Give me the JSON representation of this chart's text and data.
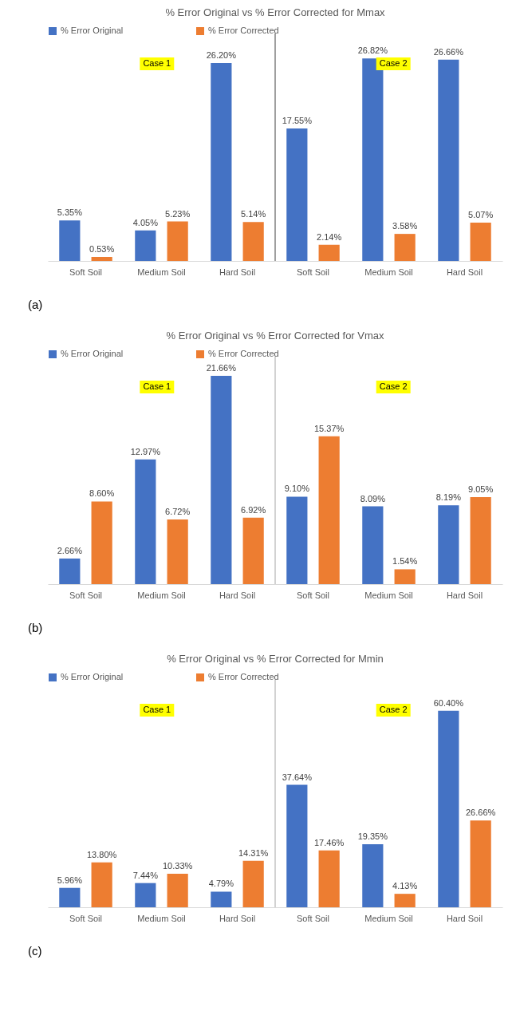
{
  "chart_data": [
    {
      "type": "bar",
      "title": "% Error Original vs % Error Corrected for Mmax",
      "categories": [
        "Soft Soil",
        "Medium Soil",
        "Hard Soil",
        "Soft Soil",
        "Medium Soil",
        "Hard Soil"
      ],
      "tick_labels": "x",
      "legend": "top",
      "annotations": [
        "Case 1",
        "Case 2",
        "(a)"
      ],
      "series": [
        {
          "name": "% Error Original",
          "color": "#4472c4",
          "values": [
            5.35,
            4.05,
            26.2,
            17.55,
            26.82,
            26.66
          ],
          "value_labels": [
            "5.35%",
            "4.05%",
            "26.20%",
            "17.55%",
            "26.82%",
            "26.66%"
          ]
        },
        {
          "name": "% Error Corrected",
          "color": "#ed7d31",
          "values": [
            0.53,
            5.23,
            5.14,
            2.14,
            3.58,
            5.07
          ],
          "value_labels": [
            "0.53%",
            "5.23%",
            "5.14%",
            "2.14%",
            "3.58%",
            "5.07%"
          ]
        }
      ]
    },
    {
      "type": "bar",
      "title": "% Error Original vs % Error Corrected for Vmax",
      "categories": [
        "Soft Soil",
        "Medium Soil",
        "Hard Soil",
        "Soft Soil",
        "Medium Soil",
        "Hard Soil"
      ],
      "tick_labels": "x",
      "legend": "top",
      "annotations": [
        "Case 1",
        "Case 2",
        "(b)"
      ],
      "series": [
        {
          "name": "% Error Original",
          "color": "#4472c4",
          "values": [
            2.66,
            12.97,
            21.66,
            9.1,
            8.09,
            8.19
          ],
          "value_labels": [
            "2.66%",
            "12.97%",
            "21.66%",
            "9.10%",
            "8.09%",
            "8.19%"
          ]
        },
        {
          "name": "% Error Corrected",
          "color": "#ed7d31",
          "values": [
            8.6,
            6.72,
            6.92,
            15.37,
            1.54,
            9.05
          ],
          "value_labels": [
            "8.60%",
            "6.72%",
            "6.92%",
            "15.37%",
            "1.54%",
            "9.05%"
          ]
        }
      ]
    },
    {
      "type": "bar",
      "title": "% Error Original vs % Error Corrected for Mmin",
      "categories": [
        "Soft Soil",
        "Medium Soil",
        "Hard Soil",
        "Soft Soil",
        "Medium Soil",
        "Hard Soil"
      ],
      "tick_labels": "x",
      "legend": "top",
      "annotations": [
        "Case 1",
        "Case 2",
        "(c)"
      ],
      "series": [
        {
          "name": "% Error Original",
          "color": "#4472c4",
          "values": [
            5.96,
            7.44,
            4.79,
            37.64,
            19.35,
            60.4
          ],
          "value_labels": [
            "5.96%",
            "7.44%",
            "4.79%",
            "37.64%",
            "19.35%",
            "60.40%"
          ]
        },
        {
          "name": "% Error Corrected",
          "color": "#ed7d31",
          "values": [
            13.8,
            10.33,
            14.31,
            17.46,
            4.13,
            26.66
          ],
          "value_labels": [
            "13.80%",
            "10.33%",
            "14.31%",
            "17.46%",
            "4.13%",
            "26.66%"
          ]
        }
      ]
    }
  ]
}
